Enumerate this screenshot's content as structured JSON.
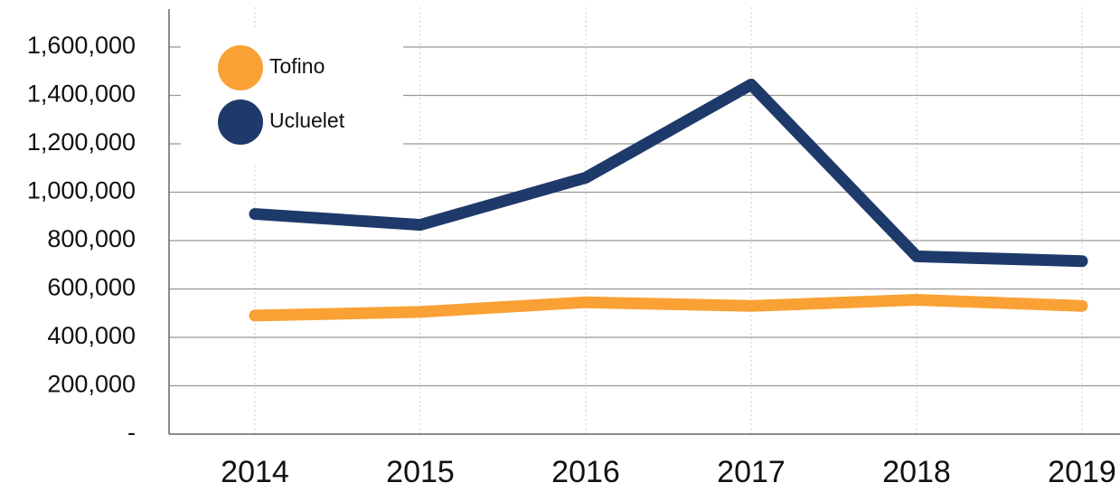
{
  "chart_data": {
    "type": "line",
    "categories": [
      "2014",
      "2015",
      "2016",
      "2017",
      "2018",
      "2019"
    ],
    "series": [
      {
        "name": "Tofino",
        "color": "#f9a134",
        "values": [
          490000,
          505000,
          545000,
          530000,
          555000,
          530000
        ]
      },
      {
        "name": "Ucluelet",
        "color": "#1e3a6b",
        "values": [
          910000,
          865000,
          1060000,
          1445000,
          735000,
          715000
        ]
      }
    ],
    "ylim": [
      0,
      1600000
    ],
    "yticks": [
      {
        "value": 0,
        "label": "-"
      },
      {
        "value": 200000,
        "label": "200,000"
      },
      {
        "value": 400000,
        "label": "400,000"
      },
      {
        "value": 600000,
        "label": "600,000"
      },
      {
        "value": 800000,
        "label": "800,000"
      },
      {
        "value": 1000000,
        "label": "1,000,000"
      },
      {
        "value": 1200000,
        "label": "1,200,000"
      },
      {
        "value": 1400000,
        "label": "1,400,000"
      },
      {
        "value": 1600000,
        "label": "1,600,000"
      }
    ],
    "grid": true,
    "legend": "upper left"
  }
}
